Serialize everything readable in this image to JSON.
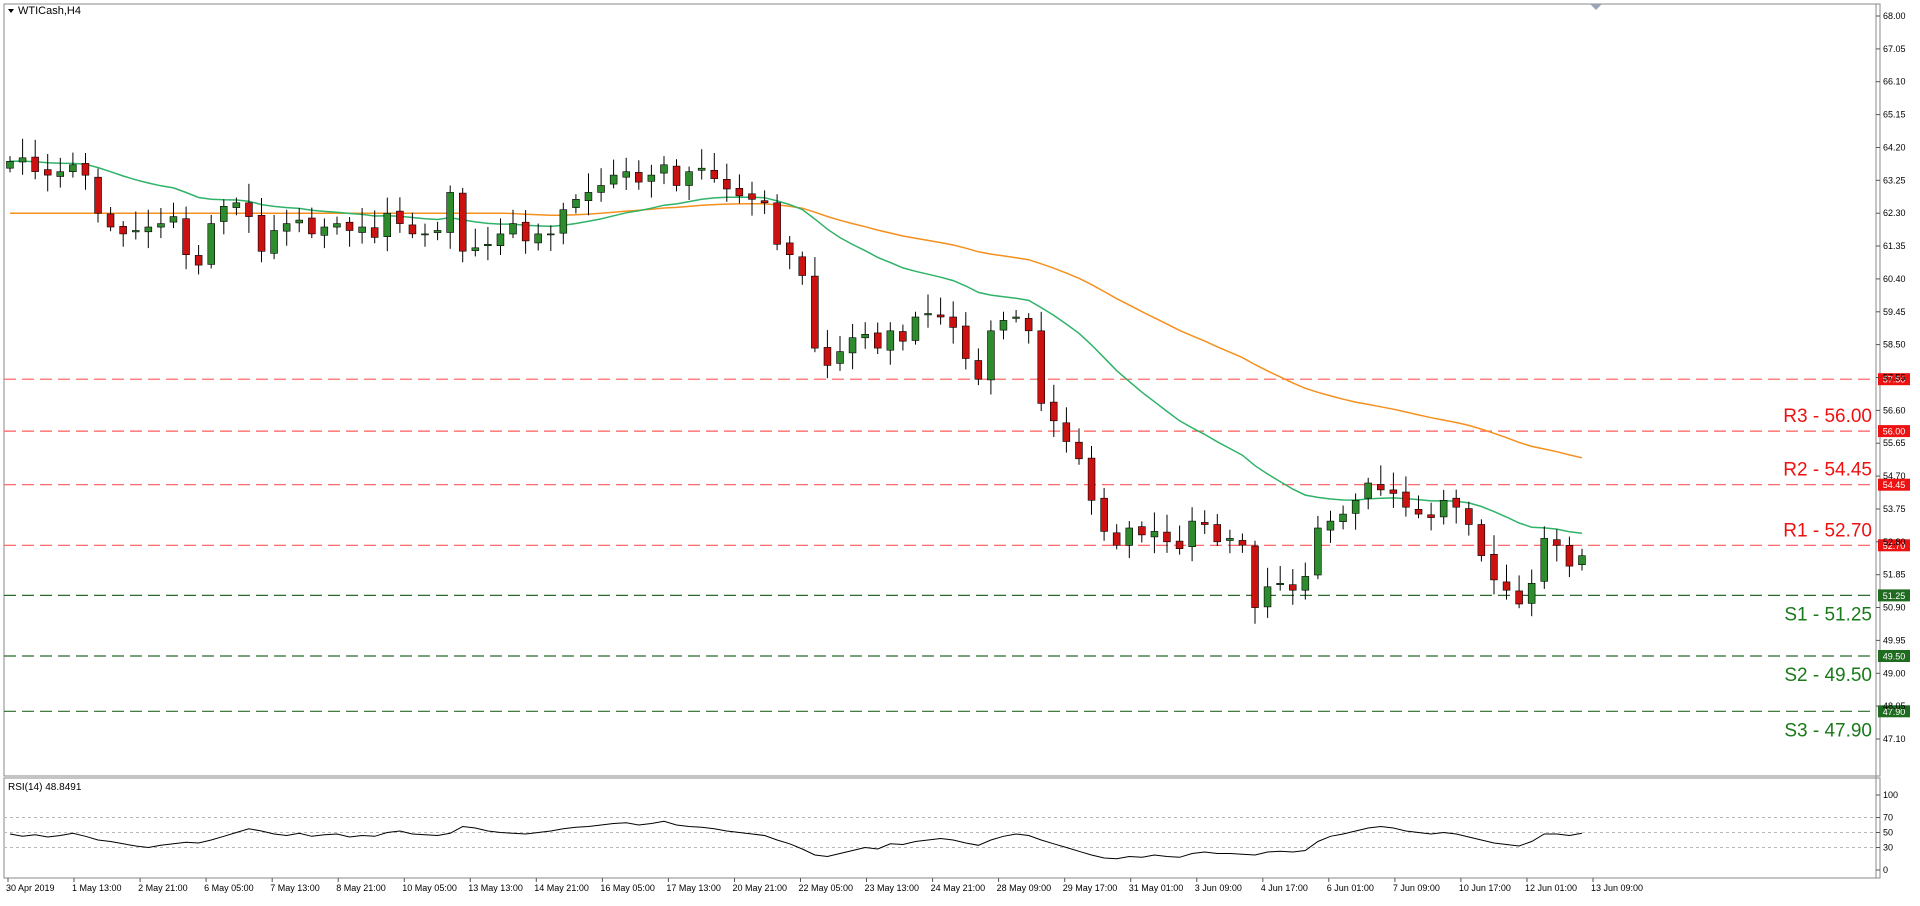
{
  "instrument": "WTICash,H4",
  "rsi_label": "RSI(14) 48.8491",
  "colors": {
    "bull": "#2e8b2e",
    "bear": "#cc1111",
    "ma_fast": "#2fb368",
    "ma_slow": "#f5901e",
    "resistance": "#ff5a5a",
    "support": "#2a6a2a",
    "resistance_text": "#ee1111",
    "support_text": "#1a7a1a"
  },
  "chart_data": [
    {
      "type": "candlestick",
      "title": "WTICash,H4",
      "ylim": [
        47.1,
        68.0
      ],
      "y_ticks": [
        "68.00",
        "67.05",
        "66.10",
        "65.15",
        "64.20",
        "63.25",
        "62.30",
        "61.35",
        "60.40",
        "59.45",
        "58.50",
        "57.55",
        "56.60",
        "55.65",
        "54.70",
        "53.75",
        "52.80",
        "51.85",
        "50.90",
        "49.95",
        "49.00",
        "48.05",
        "47.10"
      ],
      "x_labels": [
        "30 Apr 2019",
        "1 May 13:00",
        "2 May 21:00",
        "6 May 05:00",
        "7 May 13:00",
        "8 May 21:00",
        "10 May 05:00",
        "13 May 13:00",
        "14 May 21:00",
        "16 May 05:00",
        "17 May 13:00",
        "20 May 21:00",
        "22 May 05:00",
        "23 May 13:00",
        "24 May 21:00",
        "28 May 09:00",
        "29 May 17:00",
        "31 May 01:00",
        "3 Jun 09:00",
        "4 Jun 17:00",
        "6 Jun 01:00",
        "7 Jun 09:00",
        "10 Jun 17:00",
        "12 Jun 01:00",
        "13 Jun 09:00"
      ],
      "close": [
        63.8,
        63.9,
        63.5,
        63.4,
        63.5,
        63.7,
        63.4,
        62.3,
        61.9,
        61.7,
        61.8,
        61.9,
        62.0,
        62.2,
        61.1,
        60.8,
        62.0,
        62.5,
        62.6,
        62.2,
        61.2,
        61.8,
        62.0,
        62.1,
        61.7,
        61.9,
        62.0,
        61.8,
        61.9,
        61.6,
        62.3,
        62.0,
        61.7,
        61.7,
        61.8,
        62.9,
        61.2,
        61.3,
        61.4,
        61.7,
        62.0,
        61.5,
        61.7,
        61.7,
        62.4,
        62.7,
        62.9,
        63.1,
        63.4,
        63.5,
        63.2,
        63.4,
        63.7,
        63.1,
        63.5,
        63.6,
        63.3,
        63.0,
        62.8,
        62.7,
        62.6,
        61.4,
        61.1,
        60.5,
        58.4,
        57.9,
        58.3,
        58.7,
        58.8,
        58.4,
        58.9,
        58.6,
        59.3,
        59.4,
        59.3,
        59.0,
        58.1,
        57.5,
        58.9,
        59.2,
        59.3,
        58.9,
        56.8,
        56.3,
        55.7,
        55.2,
        54.0,
        53.1,
        52.7,
        53.2,
        53.0,
        53.1,
        52.8,
        52.6,
        53.4,
        53.3,
        52.8,
        52.9,
        52.7,
        50.9,
        51.5,
        51.6,
        51.4,
        51.8,
        53.2,
        53.4,
        53.6,
        54.0,
        54.5,
        54.3,
        54.2,
        53.8,
        53.6,
        53.5,
        54.0,
        53.8,
        53.3,
        52.4,
        51.7,
        51.4,
        51.0,
        51.6,
        52.9,
        52.7,
        52.1,
        52.4
      ],
      "support_resistance": [
        {
          "name": "R3",
          "label": "R3 - 56.00",
          "value": 56.0,
          "tag": "56.00",
          "kind": "resistance"
        },
        {
          "name": "R2",
          "label": "R2 - 54.45",
          "value": 54.45,
          "tag": "54.45",
          "kind": "resistance"
        },
        {
          "name": "R1",
          "label": "R1  - 52.70",
          "value": 52.7,
          "tag": "52.70",
          "kind": "resistance"
        },
        {
          "name": "S1",
          "label": "S1 - 51.25",
          "value": 51.25,
          "tag": "51.25",
          "kind": "support"
        },
        {
          "name": "S2",
          "label": "S2 - 49.50",
          "value": 49.5,
          "tag": "49.50",
          "kind": "support"
        },
        {
          "name": "S3",
          "label": "S3 - 47.90",
          "value": 47.9,
          "tag": "47.90",
          "kind": "support"
        }
      ],
      "extra_level": {
        "value": 57.5,
        "tag": "57.50"
      }
    },
    {
      "type": "line",
      "title": "RSI(14) 48.8491",
      "ylim": [
        0,
        100
      ],
      "y_ticks": [
        "100",
        "70",
        "50",
        "30",
        "0"
      ],
      "values": [
        48,
        45,
        47,
        44,
        46,
        49,
        45,
        40,
        38,
        35,
        32,
        30,
        33,
        35,
        37,
        36,
        40,
        45,
        50,
        55,
        52,
        48,
        46,
        49,
        45,
        47,
        48,
        44,
        46,
        45,
        50,
        52,
        48,
        47,
        46,
        49,
        58,
        56,
        52,
        50,
        49,
        48,
        50,
        52,
        55,
        57,
        58,
        60,
        62,
        63,
        60,
        62,
        65,
        60,
        58,
        57,
        55,
        52,
        50,
        48,
        46,
        40,
        35,
        28,
        20,
        18,
        22,
        26,
        30,
        28,
        35,
        34,
        38,
        40,
        42,
        40,
        36,
        33,
        40,
        45,
        48,
        46,
        40,
        35,
        30,
        25,
        20,
        16,
        15,
        18,
        17,
        20,
        18,
        17,
        22,
        24,
        22,
        22,
        21,
        20,
        24,
        25,
        24,
        26,
        38,
        45,
        48,
        52,
        56,
        58,
        56,
        52,
        50,
        48,
        50,
        48,
        44,
        40,
        36,
        34,
        32,
        38,
        48,
        48,
        46,
        49
      ]
    }
  ]
}
